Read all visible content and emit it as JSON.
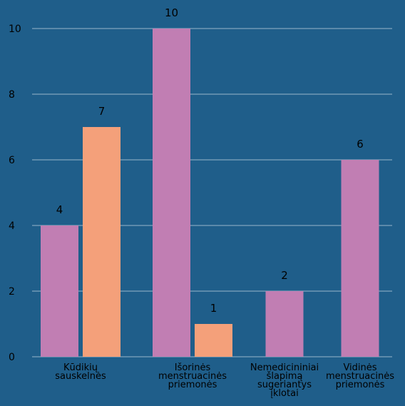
{
  "chart_data": {
    "type": "bar",
    "categories": [
      [
        "Kūdikių",
        "sauskelnės"
      ],
      [
        "Išorinės",
        "menstruacinės",
        "priemonės"
      ],
      [
        "Nemedicininiai",
        "šlapimą",
        "sugeriantys",
        "įklotai"
      ],
      [
        "Vidinės",
        "menstruacinės",
        "priemonės"
      ]
    ],
    "series": [
      {
        "values": [
          4,
          10,
          2,
          6
        ],
        "color": "#c17eb3"
      },
      {
        "values": [
          7,
          1,
          null,
          null
        ],
        "color": "#f4a07a"
      }
    ],
    "yticks": [
      0,
      2,
      4,
      6,
      8,
      10
    ],
    "ylim": [
      0,
      10
    ],
    "grid": true,
    "background": "#1f5e8a"
  }
}
